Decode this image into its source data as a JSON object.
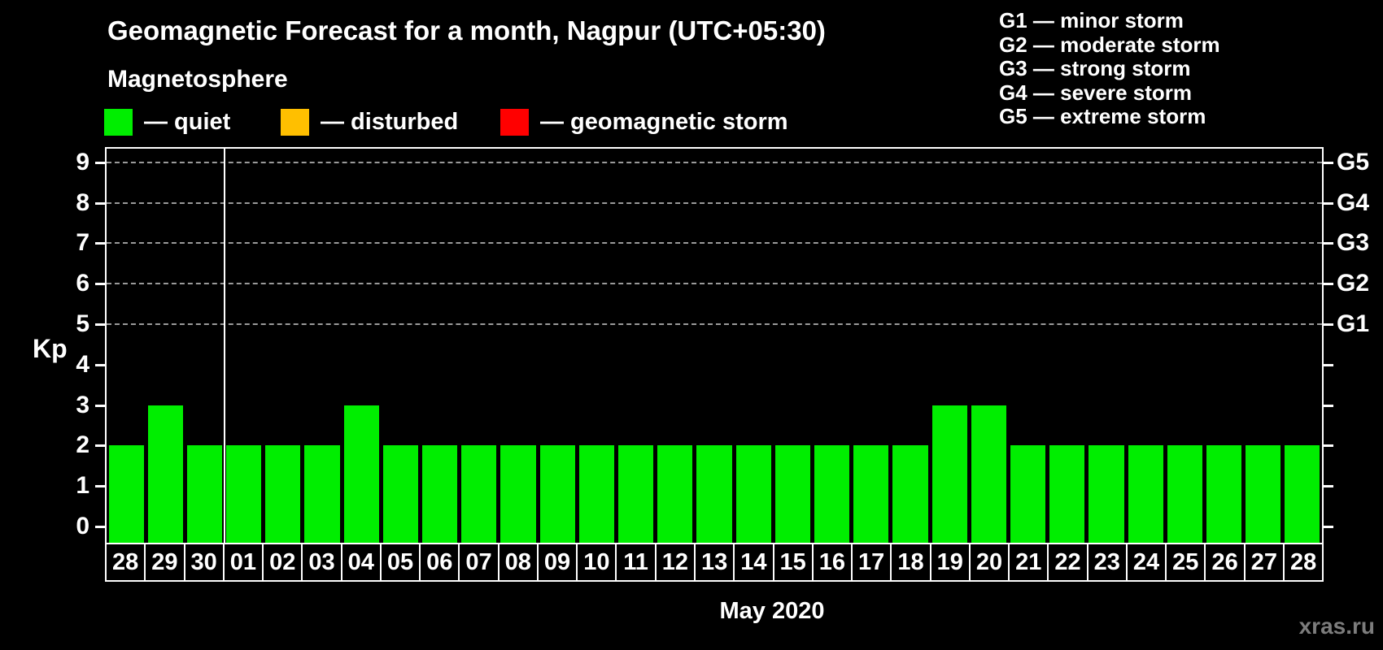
{
  "subtitle": "Magnetosphere",
  "magnetosphere_legend": [
    {
      "name": "quiet",
      "label": "— quiet",
      "color": "#00EE00"
    },
    {
      "name": "disturbed",
      "label": "— disturbed",
      "color": "#FFBF00"
    },
    {
      "name": "geomagnetic-storm",
      "label": "— geomagnetic storm",
      "color": "#FF0000"
    }
  ],
  "storm_scale_legend": [
    "G1 — minor storm",
    "G2 — moderate storm",
    "G3 — strong storm",
    "G4 — severe storm",
    "G5 — extreme storm"
  ],
  "watermark": "xras.ru",
  "chart_data": {
    "type": "bar",
    "title": "Geomagnetic Forecast for a month, Nagpur (UTC+05:30)",
    "ylabel": "Kp",
    "xlabel": "May 2020",
    "ylim": [
      0,
      9
    ],
    "yticks": [
      0,
      1,
      2,
      3,
      4,
      5,
      6,
      7,
      8,
      9
    ],
    "gridlines_at_kp": [
      5,
      6,
      7,
      8,
      9
    ],
    "grid_style": "dashed",
    "grid_color": "#9a9a9a",
    "bar_color": "#00EE00",
    "legend_position": "top",
    "categories": [
      "28",
      "29",
      "30",
      "01",
      "02",
      "03",
      "04",
      "05",
      "06",
      "07",
      "08",
      "09",
      "10",
      "11",
      "12",
      "13",
      "14",
      "15",
      "16",
      "17",
      "18",
      "19",
      "20",
      "21",
      "22",
      "23",
      "24",
      "25",
      "26",
      "27",
      "28"
    ],
    "values": [
      2,
      3,
      2,
      2,
      2,
      2,
      3,
      2,
      2,
      2,
      2,
      2,
      2,
      2,
      2,
      2,
      2,
      2,
      2,
      2,
      2,
      3,
      3,
      2,
      2,
      2,
      2,
      2,
      2,
      2,
      2
    ],
    "month_separator_after_index": 2,
    "right_axis_labels": [
      {
        "label": "G1",
        "kp": 5
      },
      {
        "label": "G2",
        "kp": 6
      },
      {
        "label": "G3",
        "kp": 7
      },
      {
        "label": "G4",
        "kp": 8
      },
      {
        "label": "G5",
        "kp": 9
      }
    ]
  }
}
